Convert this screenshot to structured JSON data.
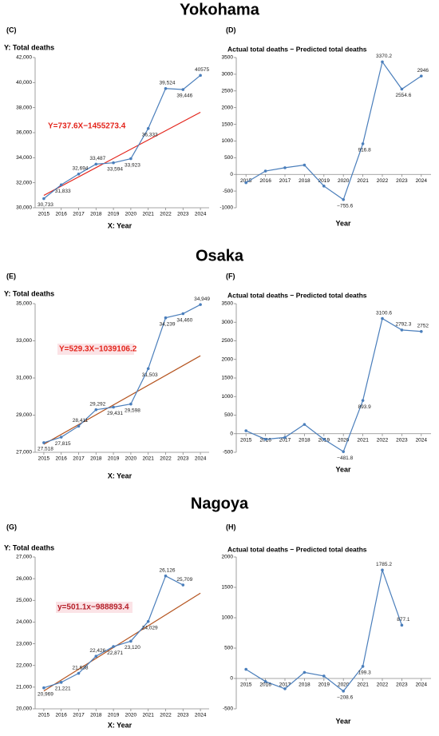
{
  "headings": [
    "Yokohama",
    "Osaka",
    "Nagoya"
  ],
  "chart_data": [
    {
      "type": "line",
      "panel": "(C)",
      "title": "Y: Total deaths",
      "x_label": "X: Year",
      "categories": [
        "2015",
        "2016",
        "2017",
        "2018",
        "2019",
        "2020",
        "2021",
        "2022",
        "2023",
        "2024"
      ],
      "series": [
        {
          "color": "#4a7ebb",
          "values": [
            30733,
            31833,
            32694,
            33487,
            33594,
            33923,
            36333,
            39524,
            39446,
            40575
          ],
          "value_labels": [
            "30,733",
            "31,833",
            "32,694",
            "33,487",
            "33,594",
            "33,923",
            "36,333",
            "39,524",
            "39,446",
            "40575"
          ]
        }
      ],
      "trend": {
        "color": "#e3241b",
        "values": [
          30991,
          37629
        ]
      },
      "annotation": "Y=737.6X−1455273.4",
      "annotation_color": "#e3241b",
      "ylim": [
        30000,
        42000
      ],
      "yticks": [
        {
          "value": 30000,
          "label": "30,000"
        },
        {
          "value": 32000,
          "label": "32,000"
        },
        {
          "value": 34000,
          "label": "34,000"
        },
        {
          "value": 36000,
          "label": "36,000"
        },
        {
          "value": 38000,
          "label": "38,000"
        },
        {
          "value": 40000,
          "label": "40,000"
        },
        {
          "value": 42000,
          "label": "42,000"
        }
      ],
      "grid": false
    },
    {
      "type": "line",
      "panel": "(D)",
      "title": "Actual total deaths − Predicted total deaths",
      "x_label": "Year",
      "categories": [
        "2015",
        "2016",
        "2017",
        "2018",
        "2019",
        "2020",
        "2021",
        "2022",
        "2023",
        "2024"
      ],
      "series": [
        {
          "color": "#4a7ebb",
          "values": [
            -250,
            100,
            200,
            280,
            -350,
            -755.6,
            916.8,
            3370.2,
            2554.6,
            2946
          ],
          "value_labels": [
            null,
            null,
            null,
            null,
            null,
            "−755.6",
            "916.8",
            "3370.2",
            "2554.6",
            "2946"
          ]
        }
      ],
      "ylim": [
        -1000,
        3500
      ],
      "yticks": [
        -1000,
        -500,
        0,
        500,
        1000,
        1500,
        2000,
        2500,
        3000,
        3500
      ],
      "grid": false
    },
    {
      "type": "line",
      "panel": "(E)",
      "title": "Y: Total deaths",
      "x_label": "X: Year",
      "categories": [
        "2015",
        "2016",
        "2017",
        "2018",
        "2019",
        "2020",
        "2021",
        "2022",
        "2023",
        "2024"
      ],
      "series": [
        {
          "color": "#4a7ebb",
          "values": [
            27518,
            27815,
            28411,
            29292,
            29431,
            29598,
            31503,
            34239,
            34460,
            34949
          ],
          "value_labels": [
            "27,518",
            "27,815",
            "28,411",
            "29,292",
            "29,431",
            "29,598",
            "31,503",
            "34,239",
            "34,460",
            "34,949"
          ]
        }
      ],
      "trend": {
        "color": "#b5541f",
        "values": [
          27433,
          32197
        ]
      },
      "annotation": "Y=529.3X−1039106.2",
      "annotation_color": "#e3241b",
      "ylim": [
        27000,
        35000
      ],
      "yticks": [
        {
          "value": 27000,
          "label": "27,000"
        },
        {
          "value": 29000,
          "label": "29,000"
        },
        {
          "value": 31000,
          "label": "31,000"
        },
        {
          "value": 33000,
          "label": "33,000"
        },
        {
          "value": 35000,
          "label": "35,000"
        }
      ],
      "grid": false
    },
    {
      "type": "line",
      "panel": "(F)",
      "title": "Actual total deaths − Predicted total deaths",
      "x_label": "Year",
      "categories": [
        "2015",
        "2016",
        "2017",
        "2018",
        "2019",
        "2020",
        "2021",
        "2022",
        "2023",
        "2024"
      ],
      "series": [
        {
          "color": "#4a7ebb",
          "values": [
            80,
            -150,
            -100,
            250,
            -150,
            -481.8,
            893.9,
            3100.6,
            2792.3,
            2752
          ],
          "value_labels": [
            null,
            null,
            null,
            null,
            null,
            "−481.8",
            "893.9",
            "3100.6",
            "2792.3",
            "2752"
          ]
        }
      ],
      "ylim": [
        -500,
        3500
      ],
      "yticks": [
        -500,
        0,
        500,
        1000,
        1500,
        2000,
        2500,
        3000,
        3500
      ],
      "grid": false
    },
    {
      "type": "line",
      "panel": "(G)",
      "title": "Y: Total deaths",
      "x_label": "X: Year",
      "categories": [
        "2015",
        "2016",
        "2017",
        "2018",
        "2019",
        "2020",
        "2021",
        "2022",
        "2023",
        "2024"
      ],
      "series": [
        {
          "color": "#4a7ebb",
          "values": [
            20969,
            21221,
            21638,
            22426,
            22871,
            23120,
            24029,
            26126,
            25709,
            null
          ],
          "value_labels": [
            "20,969",
            "21,221",
            "21,638",
            "22,426",
            "22,871",
            "23,120",
            "24,029",
            "26,126",
            "25,709",
            null
          ]
        }
      ],
      "trend": {
        "color": "#b5541f",
        "values": [
          20823,
          25333
        ]
      },
      "annotation": "y=501.1x−988893.4",
      "annotation_color": "#b5202a",
      "ylim": [
        20000,
        27000
      ],
      "yticks": [
        {
          "value": 20000,
          "label": "20,000"
        },
        {
          "value": 21000,
          "label": "21,000"
        },
        {
          "value": 22000,
          "label": "22,000"
        },
        {
          "value": 23000,
          "label": "23,000"
        },
        {
          "value": 24000,
          "label": "24,000"
        },
        {
          "value": 25000,
          "label": "25,000"
        },
        {
          "value": 26000,
          "label": "26,000"
        },
        {
          "value": 27000,
          "label": "27,000"
        }
      ],
      "grid": false
    },
    {
      "type": "line",
      "panel": "(H)",
      "title": "Actual total deaths − Predicted total deaths",
      "x_label": "Year",
      "categories": [
        "2015",
        "2016",
        "2017",
        "2018",
        "2019",
        "2020",
        "2021",
        "2022",
        "2023",
        "2024"
      ],
      "series": [
        {
          "color": "#4a7ebb",
          "values": [
            150,
            -50,
            -170,
            100,
            40,
            -208.6,
            199.3,
            1785.2,
            877.1,
            null
          ],
          "value_labels": [
            null,
            null,
            null,
            null,
            null,
            "−208.6",
            "199.3",
            "1785.2",
            "877.1",
            null
          ]
        }
      ],
      "ylim": [
        -500,
        2000
      ],
      "yticks": [
        -500,
        0,
        500,
        1000,
        1500,
        2000
      ],
      "grid": false
    }
  ]
}
